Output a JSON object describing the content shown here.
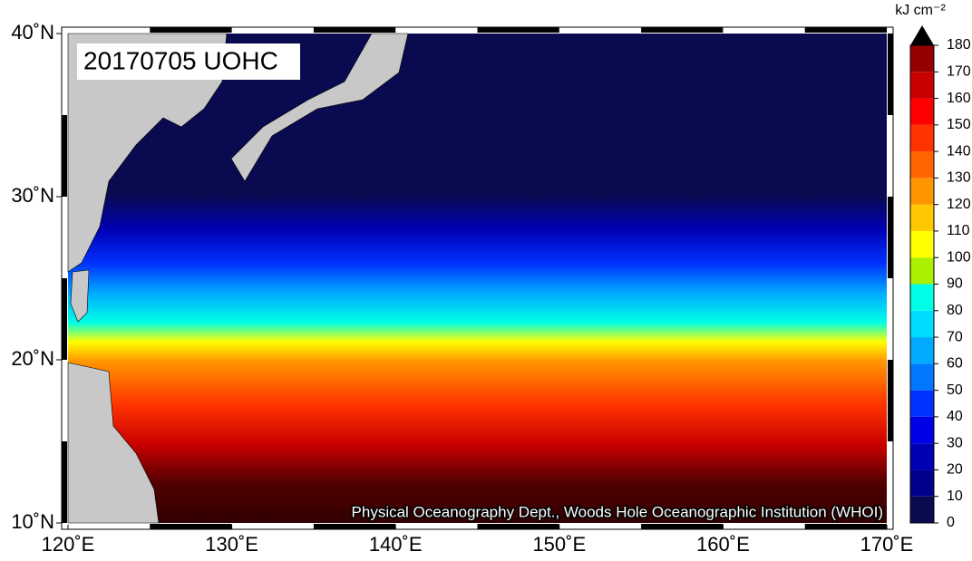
{
  "chart_data": {
    "type": "heatmap",
    "title": "20170705 UOHC",
    "credit": "Physical Oceanography Dept., Woods Hole Oceanographic Institution (WHOI)",
    "xlim": [
      120,
      170
    ],
    "ylim": [
      10,
      40
    ],
    "xticks": [
      {
        "value": 120,
        "label": "120˚E"
      },
      {
        "value": 130,
        "label": "130˚E"
      },
      {
        "value": 140,
        "label": "140˚E"
      },
      {
        "value": 150,
        "label": "150˚E"
      },
      {
        "value": 160,
        "label": "160˚E"
      },
      {
        "value": 170,
        "label": "170˚E"
      }
    ],
    "yticks": [
      {
        "value": 10,
        "label": "10˚N"
      },
      {
        "value": 20,
        "label": "20˚N"
      },
      {
        "value": 30,
        "label": "30˚N"
      },
      {
        "value": 40,
        "label": "40˚N"
      }
    ],
    "colorbar": {
      "label": "kJ cm⁻²",
      "ticks": [
        0,
        10,
        20,
        30,
        40,
        50,
        60,
        70,
        80,
        90,
        100,
        110,
        120,
        130,
        140,
        150,
        160,
        170,
        180
      ],
      "colors": [
        "#0a0a50",
        "#00008c",
        "#0000b4",
        "#0000e6",
        "#0032ff",
        "#0078ff",
        "#00aaff",
        "#00dcff",
        "#00ffe6",
        "#aaf000",
        "#ffff00",
        "#ffc800",
        "#ff9600",
        "#ff6400",
        "#ff3200",
        "#ff0000",
        "#c80000",
        "#960000"
      ],
      "extend_color": "#000000"
    }
  }
}
